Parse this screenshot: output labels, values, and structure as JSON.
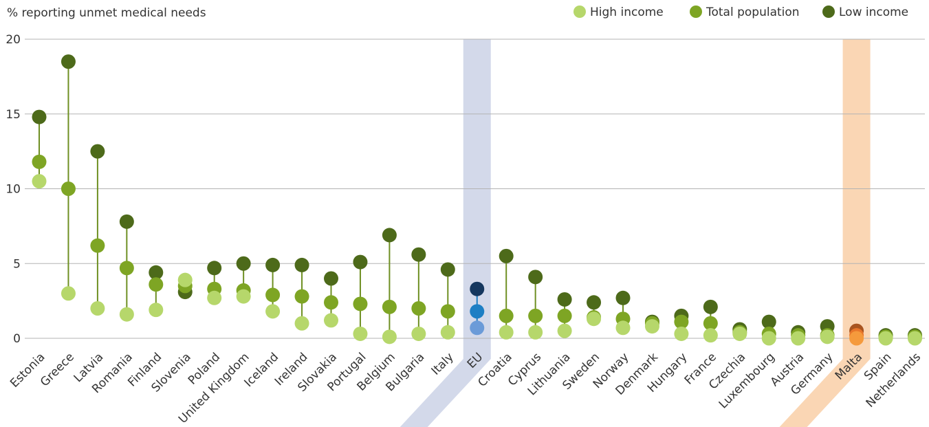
{
  "chart_data": {
    "type": "dot-range",
    "ylabel": "% reporting unmet medical needs",
    "ylim": [
      0,
      20
    ],
    "yticks": [
      0,
      5,
      10,
      15,
      20
    ],
    "grid": true,
    "legend_position": "top-right",
    "legend": [
      {
        "name": "High income",
        "color": "#b6d76b"
      },
      {
        "name": "Total population",
        "color": "#7ea524"
      },
      {
        "name": "Low income",
        "color": "#4d6a1a"
      }
    ],
    "categories": [
      "Estonia",
      "Greece",
      "Latvia",
      "Romania",
      "Finland",
      "Slovenia",
      "Poland",
      "United Kingdom",
      "Iceland",
      "Ireland",
      "Slovakia",
      "Portugal",
      "Belgium",
      "Bulgaria",
      "Italy",
      "EU",
      "Croatia",
      "Cyprus",
      "Lithuania",
      "Sweden",
      "Norway",
      "Denmark",
      "Hungary",
      "France",
      "Czechia",
      "Luxembourg",
      "Austria",
      "Germany",
      "Malta",
      "Spain",
      "Netherlands"
    ],
    "series": [
      {
        "name": "High income",
        "values": [
          10.5,
          3.0,
          2.0,
          1.6,
          1.9,
          3.9,
          2.7,
          2.8,
          1.8,
          1.0,
          1.2,
          0.3,
          0.1,
          0.3,
          0.4,
          0.7,
          0.4,
          0.4,
          0.5,
          1.3,
          0.7,
          0.8,
          0.3,
          0.2,
          0.3,
          0.0,
          0.0,
          0.1,
          0.0,
          0.0,
          0.0
        ]
      },
      {
        "name": "Total population",
        "values": [
          11.8,
          10.0,
          6.2,
          4.7,
          3.6,
          3.5,
          3.3,
          3.2,
          2.9,
          2.8,
          2.4,
          2.3,
          2.1,
          2.0,
          1.8,
          1.8,
          1.5,
          1.5,
          1.5,
          1.4,
          1.3,
          1.0,
          1.1,
          1.0,
          0.4,
          0.3,
          0.2,
          0.2,
          0.2,
          0.1,
          0.1
        ]
      },
      {
        "name": "Low income",
        "values": [
          14.8,
          18.5,
          12.5,
          7.8,
          4.4,
          3.1,
          4.7,
          5.0,
          4.9,
          4.9,
          4.0,
          5.1,
          6.9,
          5.6,
          4.6,
          3.3,
          5.5,
          4.1,
          2.6,
          2.4,
          2.7,
          1.1,
          1.5,
          2.1,
          0.6,
          1.1,
          0.4,
          0.8,
          0.5,
          0.2,
          0.2
        ]
      }
    ],
    "highlights": [
      {
        "category": "EU",
        "band_color": "#d3d9ea",
        "dot_colors": [
          "#6b9bd8",
          "#1d7fc4",
          "#15375e"
        ]
      },
      {
        "category": "Malta",
        "band_color": "#fad6b4",
        "dot_colors": [
          "#f59a3c",
          "#e8762a",
          "#a8541f"
        ]
      }
    ]
  }
}
